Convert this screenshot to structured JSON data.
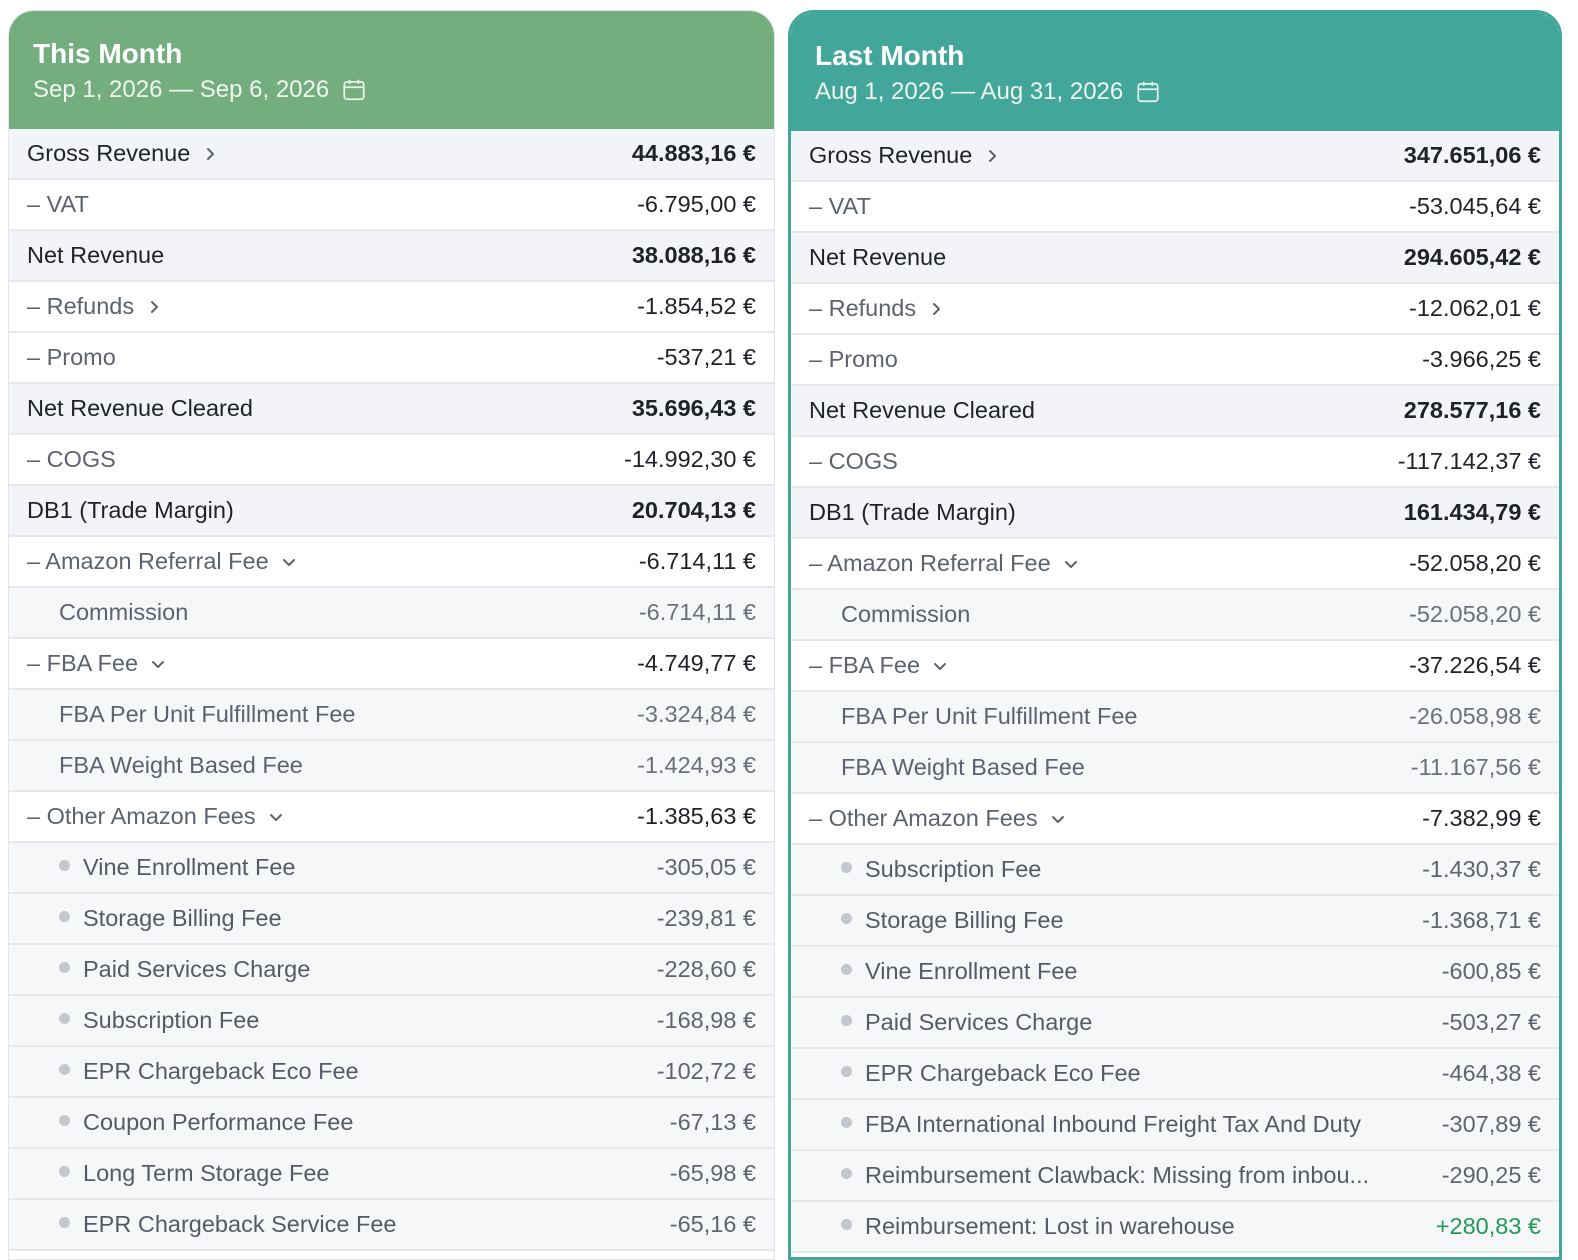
{
  "panels": [
    {
      "title": "This Month",
      "range": "Sep 1, 2026 — Sep 6, 2026",
      "rows": [
        {
          "label": "Gross Revenue",
          "value": "44.883,16 €",
          "kind": "total",
          "icon": "chevron-right-icon"
        },
        {
          "label": "– VAT",
          "value": "-6.795,00 €",
          "kind": "minus"
        },
        {
          "label": "Net Revenue",
          "value": "38.088,16 €",
          "kind": "total"
        },
        {
          "label": "– Refunds",
          "value": "-1.854,52 €",
          "kind": "minus",
          "icon": "chevron-right-icon"
        },
        {
          "label": "– Promo",
          "value": "-537,21 €",
          "kind": "minus"
        },
        {
          "label": "Net Revenue Cleared",
          "value": "35.696,43 €",
          "kind": "total"
        },
        {
          "label": "– COGS",
          "value": "-14.992,30 €",
          "kind": "minus"
        },
        {
          "label": "DB1 (Trade Margin)",
          "value": "20.704,13 €",
          "kind": "total"
        },
        {
          "label": "– Amazon Referral Fee",
          "value": "-6.714,11 €",
          "kind": "minus",
          "icon": "chevron-down-icon"
        },
        {
          "label": "Commission",
          "value": "-6.714,11 €",
          "kind": "sub"
        },
        {
          "label": "– FBA Fee",
          "value": "-4.749,77 €",
          "kind": "minus",
          "icon": "chevron-down-icon"
        },
        {
          "label": "FBA Per Unit Fulfillment Fee",
          "value": "-3.324,84 €",
          "kind": "sub"
        },
        {
          "label": "FBA Weight Based Fee",
          "value": "-1.424,93 €",
          "kind": "sub"
        },
        {
          "label": "– Other Amazon Fees",
          "value": "-1.385,63 €",
          "kind": "minus",
          "icon": "chevron-down-icon"
        },
        {
          "label": "Vine Enrollment Fee",
          "value": "-305,05 €",
          "kind": "bullet"
        },
        {
          "label": "Storage Billing Fee",
          "value": "-239,81 €",
          "kind": "bullet"
        },
        {
          "label": "Paid Services Charge",
          "value": "-228,60 €",
          "kind": "bullet"
        },
        {
          "label": "Subscription Fee",
          "value": "-168,98 €",
          "kind": "bullet"
        },
        {
          "label": "EPR Chargeback Eco Fee",
          "value": "-102,72 €",
          "kind": "bullet"
        },
        {
          "label": "Coupon Performance Fee",
          "value": "-67,13 €",
          "kind": "bullet"
        },
        {
          "label": "Long Term Storage Fee",
          "value": "-65,98 €",
          "kind": "bullet"
        },
        {
          "label": "EPR Chargeback Service Fee",
          "value": "-65,16 €",
          "kind": "bullet"
        }
      ]
    },
    {
      "title": "Last Month",
      "range": "Aug 1, 2026 — Aug 31, 2026",
      "rows": [
        {
          "label": "Gross Revenue",
          "value": "347.651,06 €",
          "kind": "total",
          "icon": "chevron-right-icon"
        },
        {
          "label": "– VAT",
          "value": "-53.045,64 €",
          "kind": "minus"
        },
        {
          "label": "Net Revenue",
          "value": "294.605,42 €",
          "kind": "total"
        },
        {
          "label": "– Refunds",
          "value": "-12.062,01 €",
          "kind": "minus",
          "icon": "chevron-right-icon"
        },
        {
          "label": "– Promo",
          "value": "-3.966,25 €",
          "kind": "minus"
        },
        {
          "label": "Net Revenue Cleared",
          "value": "278.577,16 €",
          "kind": "total"
        },
        {
          "label": "– COGS",
          "value": "-117.142,37 €",
          "kind": "minus"
        },
        {
          "label": "DB1 (Trade Margin)",
          "value": "161.434,79 €",
          "kind": "total"
        },
        {
          "label": "– Amazon Referral Fee",
          "value": "-52.058,20 €",
          "kind": "minus",
          "icon": "chevron-down-icon"
        },
        {
          "label": "Commission",
          "value": "-52.058,20 €",
          "kind": "sub"
        },
        {
          "label": "– FBA Fee",
          "value": "-37.226,54 €",
          "kind": "minus",
          "icon": "chevron-down-icon"
        },
        {
          "label": "FBA Per Unit Fulfillment Fee",
          "value": "-26.058,98 €",
          "kind": "sub"
        },
        {
          "label": "FBA Weight Based Fee",
          "value": "-11.167,56 €",
          "kind": "sub"
        },
        {
          "label": "– Other Amazon Fees",
          "value": "-7.382,99 €",
          "kind": "minus",
          "icon": "chevron-down-icon"
        },
        {
          "label": "Subscription Fee",
          "value": "-1.430,37 €",
          "kind": "bullet"
        },
        {
          "label": "Storage Billing Fee",
          "value": "-1.368,71 €",
          "kind": "bullet"
        },
        {
          "label": "Vine Enrollment Fee",
          "value": "-600,85 €",
          "kind": "bullet"
        },
        {
          "label": "Paid Services Charge",
          "value": "-503,27 €",
          "kind": "bullet"
        },
        {
          "label": "EPR Chargeback Eco Fee",
          "value": "-464,38 €",
          "kind": "bullet"
        },
        {
          "label": "FBA International Inbound Freight Tax And Duty",
          "value": "-307,89 €",
          "kind": "bullet"
        },
        {
          "label": "Reimbursement Clawback: Missing from inbou...",
          "value": "-290,25 €",
          "kind": "bullet"
        },
        {
          "label": "Reimbursement: Lost in warehouse",
          "value": "+280,83 €",
          "kind": "bullet",
          "positive": true
        }
      ]
    }
  ],
  "colors": {
    "this_month_header": "#74ae7f",
    "last_month_header": "#42a69a",
    "positive": "#1f9b57"
  }
}
